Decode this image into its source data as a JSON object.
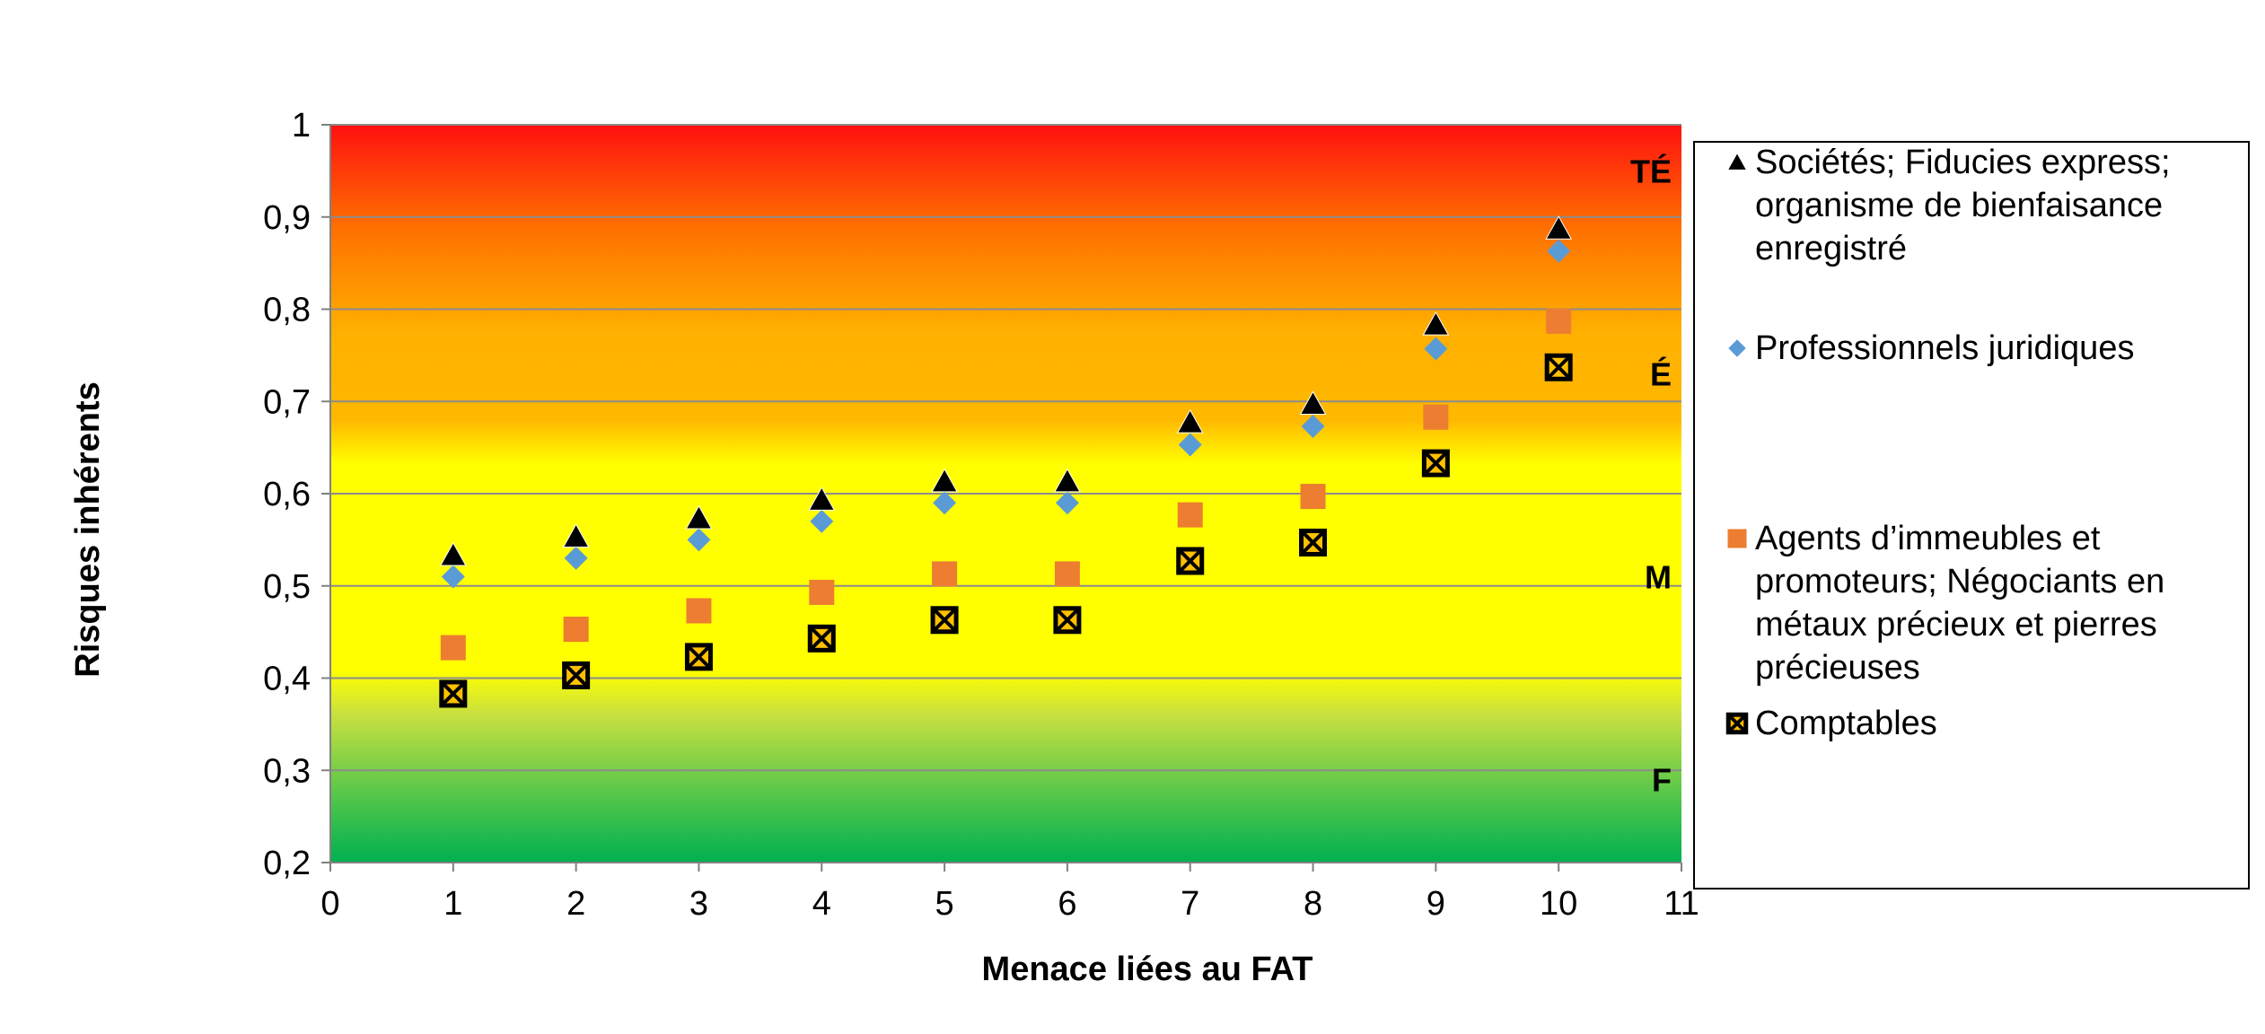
{
  "chart_data": {
    "type": "scatter",
    "title": "",
    "xlabel": "Menace liées au FAT",
    "ylabel": "Risques inhérents",
    "xlim": [
      0,
      11
    ],
    "ylim": [
      0.2,
      1
    ],
    "x_ticks": [
      "0",
      "1",
      "2",
      "3",
      "4",
      "5",
      "6",
      "7",
      "8",
      "9",
      "10",
      "11"
    ],
    "y_ticks": [
      "0,2",
      "0,3",
      "0,4",
      "0,5",
      "0,6",
      "0,7",
      "0,8",
      "0,9",
      "1"
    ],
    "grid": true,
    "legend_position": "right",
    "background_gradient": [
      "#ff0000",
      "#ff6a00",
      "#ffb000",
      "#ffff00",
      "#ffff00",
      "#00b050"
    ],
    "risk_bands": [
      {
        "label": "TÉ",
        "y": 0.95
      },
      {
        "label": "É",
        "y": 0.73
      },
      {
        "label": "M",
        "y": 0.51
      },
      {
        "label": "F",
        "y": 0.29
      }
    ],
    "x": [
      1,
      2,
      3,
      4,
      5,
      6,
      7,
      8,
      9,
      10
    ],
    "series": [
      {
        "name": "Sociétés; Fiducies express; organisme de bienfaisance enregistré",
        "legend_lines": [
          "Sociétés; Fiducies express;",
          "organisme de bienfaisance",
          "enregistré"
        ],
        "marker": "triangle",
        "color": "#000000",
        "values": [
          0.533,
          0.553,
          0.573,
          0.593,
          0.613,
          0.613,
          0.677,
          0.697,
          0.783,
          0.887
        ]
      },
      {
        "name": "Professionnels juridiques",
        "legend_lines": [
          "Professionnels juridiques"
        ],
        "marker": "diamond",
        "color": "#5b9bd5",
        "values": [
          0.51,
          0.53,
          0.55,
          0.57,
          0.59,
          0.59,
          0.653,
          0.673,
          0.757,
          0.863
        ]
      },
      {
        "name": "Agents d’immeubles et promoteurs; Négociants en métaux précieux et pierres précieuses",
        "legend_lines": [
          "Agents d’immeubles et",
          "promoteurs; Négociants en",
          "métaux précieux et pierres",
          "précieuses"
        ],
        "marker": "square",
        "color": "#ed7d31",
        "values": [
          0.433,
          0.453,
          0.473,
          0.493,
          0.513,
          0.513,
          0.577,
          0.597,
          0.683,
          0.787
        ]
      },
      {
        "name": "Comptables",
        "legend_lines": [
          "Comptables"
        ],
        "marker": "xbox",
        "color": "#ffc000",
        "values": [
          0.383,
          0.403,
          0.423,
          0.443,
          0.463,
          0.463,
          0.527,
          0.547,
          0.633,
          0.737
        ]
      }
    ]
  }
}
